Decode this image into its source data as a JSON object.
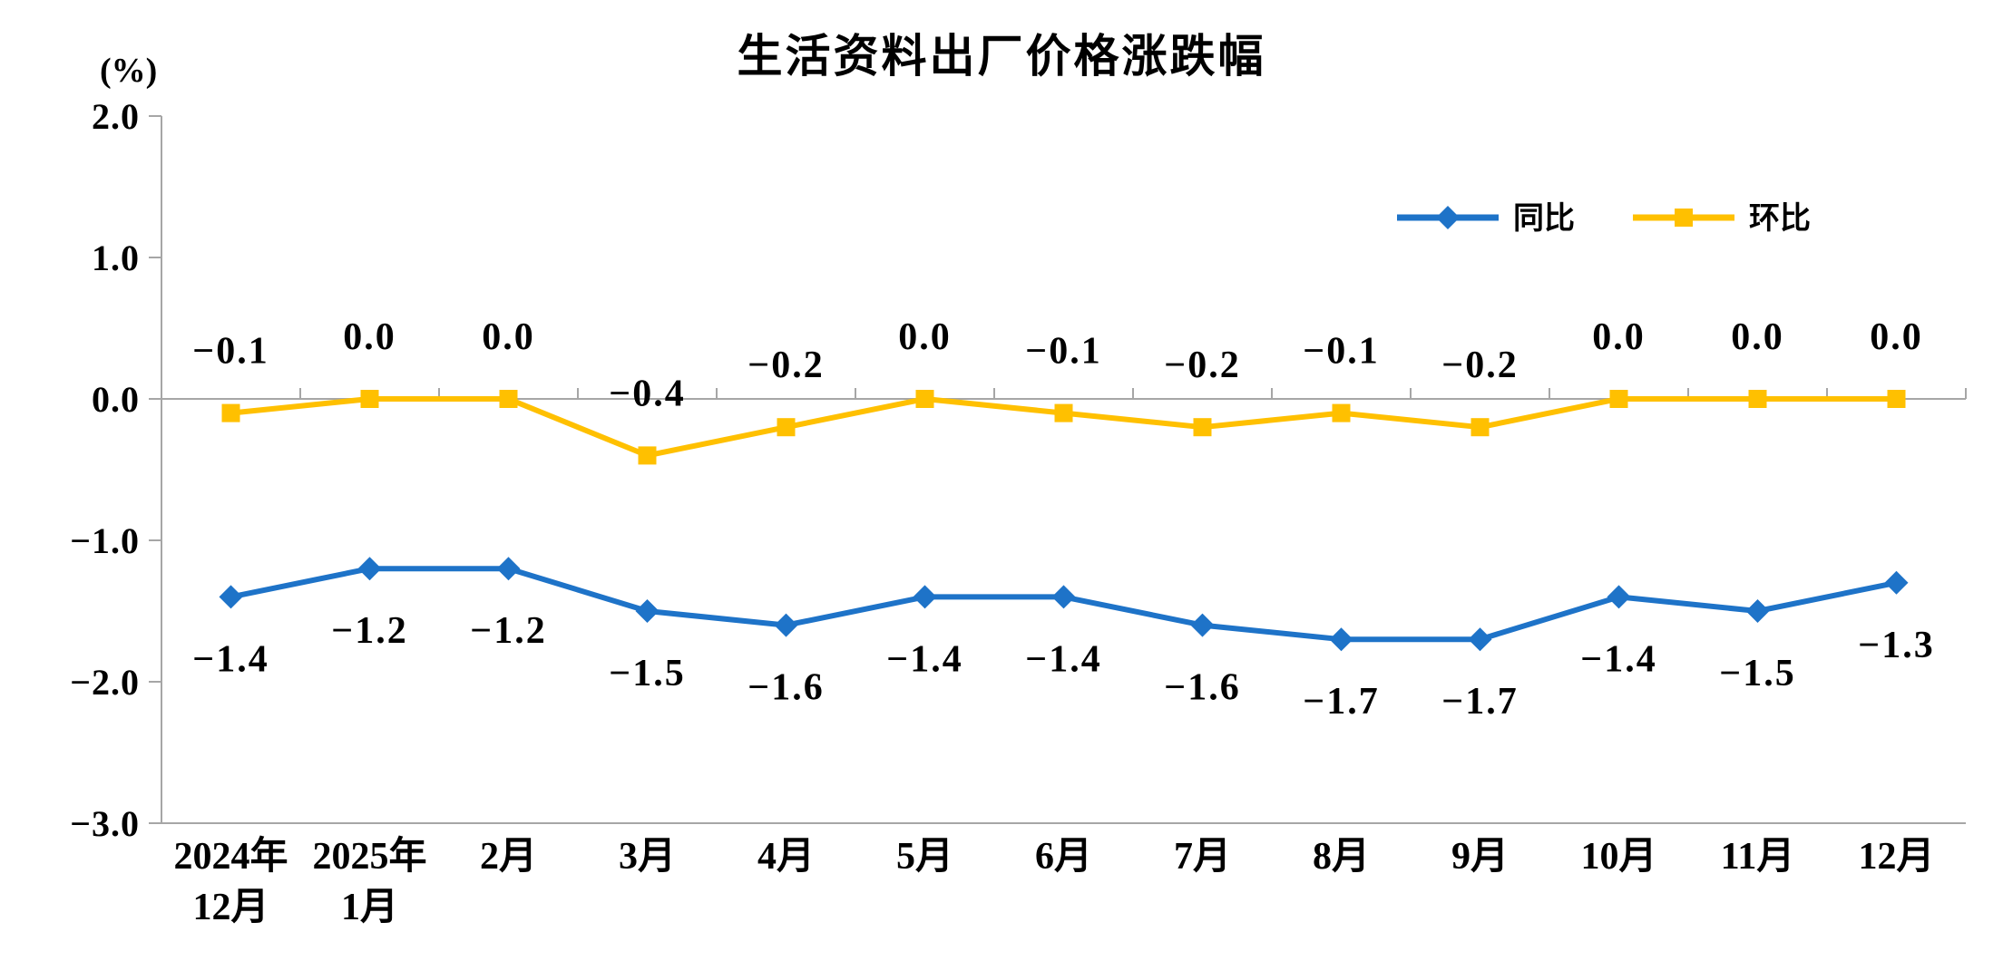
{
  "title": "生活资料出厂价格涨跌幅",
  "unit_label": "(%)",
  "colors": {
    "axis": "#a6a6a6",
    "text": "#000000",
    "series_tongbi": "#1e73c8",
    "series_huanbi": "#ffc000"
  },
  "chart_data": {
    "type": "line",
    "title": "生活资料出厂价格涨跌幅",
    "ylabel": "(%)",
    "xlabel": "",
    "ylim": [
      -3.0,
      2.0
    ],
    "yticks": [
      2.0,
      1.0,
      0.0,
      -1.0,
      -2.0,
      -3.0
    ],
    "grid": false,
    "legend_position": "top-right",
    "categories": [
      "2024年|12月",
      "2025年|1月",
      "2月",
      "3月",
      "4月",
      "5月",
      "6月",
      "7月",
      "8月",
      "9月",
      "10月",
      "11月",
      "12月"
    ],
    "series": [
      {
        "name": "同比",
        "key": "tongbi",
        "color": "#1e73c8",
        "marker": "diamond",
        "label_position": "below",
        "values": [
          -1.4,
          -1.2,
          -1.2,
          -1.5,
          -1.6,
          -1.4,
          -1.4,
          -1.6,
          -1.7,
          -1.7,
          -1.4,
          -1.5,
          -1.3
        ]
      },
      {
        "name": "环比",
        "key": "huanbi",
        "color": "#ffc000",
        "marker": "square",
        "label_position": "above",
        "values": [
          -0.1,
          0.0,
          0.0,
          -0.4,
          -0.2,
          0.0,
          -0.1,
          -0.2,
          -0.1,
          -0.2,
          0.0,
          0.0,
          0.0
        ]
      }
    ]
  }
}
